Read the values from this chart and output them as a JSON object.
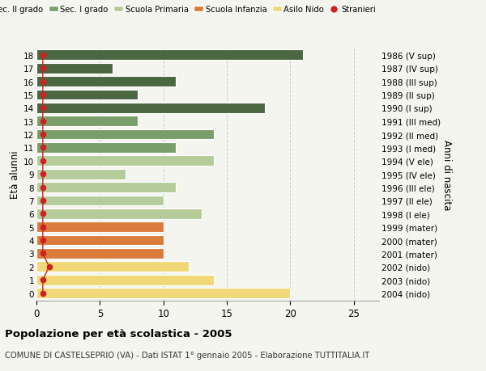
{
  "ages": [
    18,
    17,
    16,
    15,
    14,
    13,
    12,
    11,
    10,
    9,
    8,
    7,
    6,
    5,
    4,
    3,
    2,
    1,
    0
  ],
  "right_labels": [
    "1986 (V sup)",
    "1987 (IV sup)",
    "1988 (III sup)",
    "1989 (II sup)",
    "1990 (I sup)",
    "1991 (III med)",
    "1992 (II med)",
    "1993 (I med)",
    "1994 (V ele)",
    "1995 (IV ele)",
    "1996 (III ele)",
    "1997 (II ele)",
    "1998 (I ele)",
    "1999 (mater)",
    "2000 (mater)",
    "2001 (mater)",
    "2002 (nido)",
    "2003 (nido)",
    "2004 (nido)"
  ],
  "values": [
    21,
    6,
    11,
    8,
    18,
    8,
    14,
    11,
    14,
    7,
    11,
    10,
    13,
    10,
    10,
    10,
    12,
    14,
    20
  ],
  "bar_colors": [
    "#4a6741",
    "#4a6741",
    "#4a6741",
    "#4a6741",
    "#4a6741",
    "#7a9e6a",
    "#7a9e6a",
    "#7a9e6a",
    "#b5cc9a",
    "#b5cc9a",
    "#b5cc9a",
    "#b5cc9a",
    "#b5cc9a",
    "#d97c3c",
    "#d97c3c",
    "#d97c3c",
    "#f0d878",
    "#f0d878",
    "#f0d878"
  ],
  "stranieri_values": [
    0.5,
    0.5,
    0.5,
    0.5,
    0.5,
    0.5,
    0.5,
    0.5,
    0.5,
    0.5,
    0.5,
    0.5,
    0.5,
    0.5,
    0.5,
    0.5,
    1.0,
    0.5,
    0.5
  ],
  "legend_labels": [
    "Sec. II grado",
    "Sec. I grado",
    "Scuola Primaria",
    "Scuola Infanzia",
    "Asilo Nido",
    "Stranieri"
  ],
  "legend_colors": [
    "#4a6741",
    "#7a9e6a",
    "#b5cc9a",
    "#d97c3c",
    "#f0d878",
    "#cc2222"
  ],
  "ylabel_left": "Età alunni",
  "ylabel_right": "Anni di nascita",
  "xlim": [
    0,
    27
  ],
  "xticks": [
    0,
    5,
    10,
    15,
    20,
    25
  ],
  "title": "Popolazione per età scolastica - 2005",
  "subtitle": "COMUNE DI CASTELSEPRIO (VA) - Dati ISTAT 1° gennaio 2005 - Elaborazione TUTTITALIA.IT",
  "bg_color": "#f5f5f0",
  "bar_edge_color": "white",
  "stranieri_color": "#cc2222",
  "grid_color": "#cccccc"
}
